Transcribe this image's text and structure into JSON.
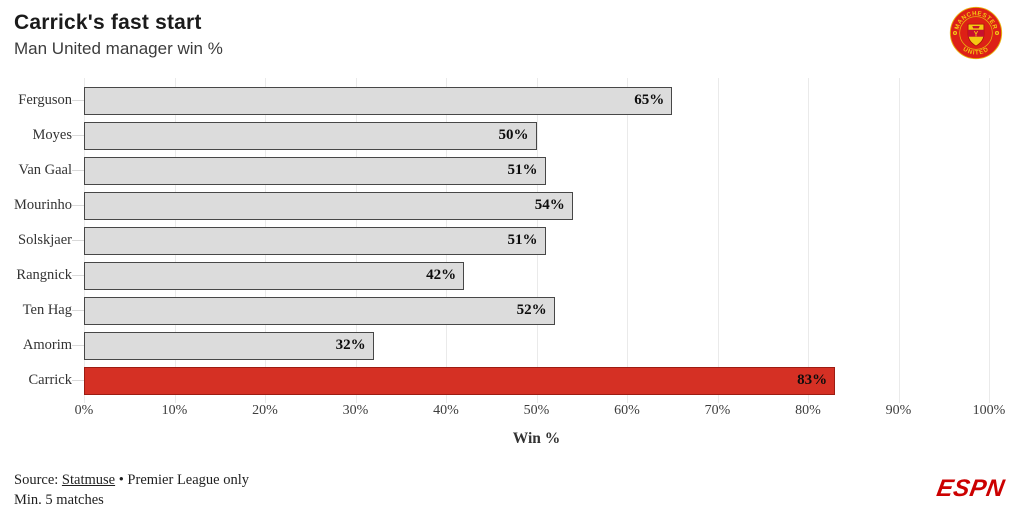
{
  "header": {
    "title": "Carrick's fast start",
    "subtitle": "Man United manager win %"
  },
  "logos": {
    "club_crest": "manchester-united-crest",
    "crest_text_top": "MANCHESTER",
    "crest_text_bottom": "UNITED",
    "network_logo": "ESPN"
  },
  "chart_data": {
    "type": "bar",
    "orientation": "horizontal",
    "categories": [
      "Ferguson",
      "Moyes",
      "Van Gaal",
      "Mourinho",
      "Solskjaer",
      "Rangnick",
      "Ten Hag",
      "Amorim",
      "Carrick"
    ],
    "values": [
      65,
      50,
      51,
      54,
      51,
      42,
      52,
      32,
      83
    ],
    "value_labels": [
      "65%",
      "50%",
      "51%",
      "54%",
      "51%",
      "42%",
      "52%",
      "32%",
      "83%"
    ],
    "highlight_index": 8,
    "title": "Carrick's fast start",
    "subtitle": "Man United manager win %",
    "xlabel": "Win %",
    "x_ticks": [
      "0%",
      "10%",
      "20%",
      "30%",
      "40%",
      "50%",
      "60%",
      "70%",
      "80%",
      "90%",
      "100%"
    ],
    "xlim": [
      0,
      100
    ],
    "grid": true,
    "colors": {
      "bar_fill": "#dcdcdc",
      "bar_border": "#474747",
      "highlight_fill": "#d53024",
      "highlight_border": "#9c1c12",
      "gridline": "#eaeaea",
      "value_label": "#0d0d0d"
    },
    "legend": null
  },
  "footer": {
    "source_prefix": "Source: ",
    "source_link": "Statmuse",
    "source_separator": " • ",
    "source_suffix": "Premier League only",
    "note": "Min. 5 matches"
  }
}
